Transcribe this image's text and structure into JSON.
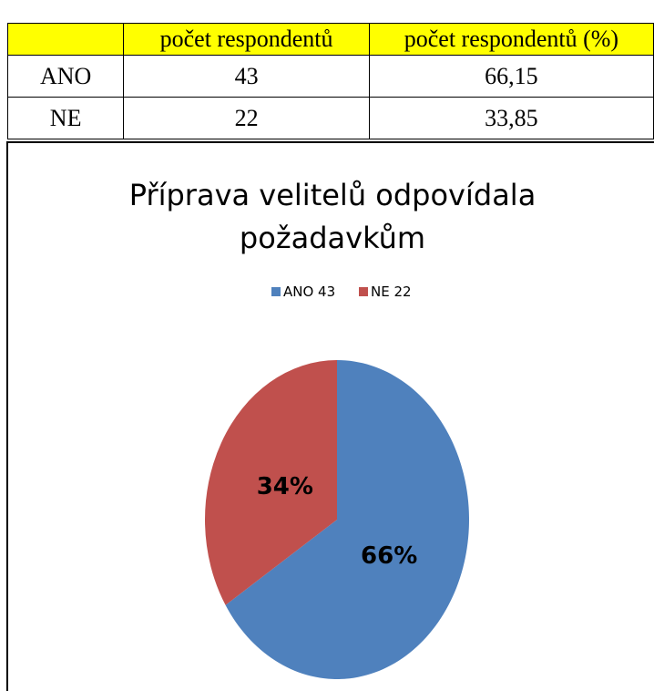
{
  "table": {
    "header": [
      "počet respondentů",
      "počet respondentů (%)"
    ],
    "rows": [
      [
        "ANO",
        "43",
        "66,15"
      ],
      [
        "NE",
        "22",
        "33,85"
      ]
    ]
  },
  "chart_data": {
    "type": "pie",
    "title": [
      "Příprava velitelů odpovídala",
      "požadavkům"
    ],
    "categories": [
      "ANO 43",
      "NE 22"
    ],
    "values": [
      66,
      34
    ],
    "value_labels": [
      "66%",
      "34%"
    ],
    "colors": [
      "#4f81bd",
      "#c0504d"
    ]
  }
}
